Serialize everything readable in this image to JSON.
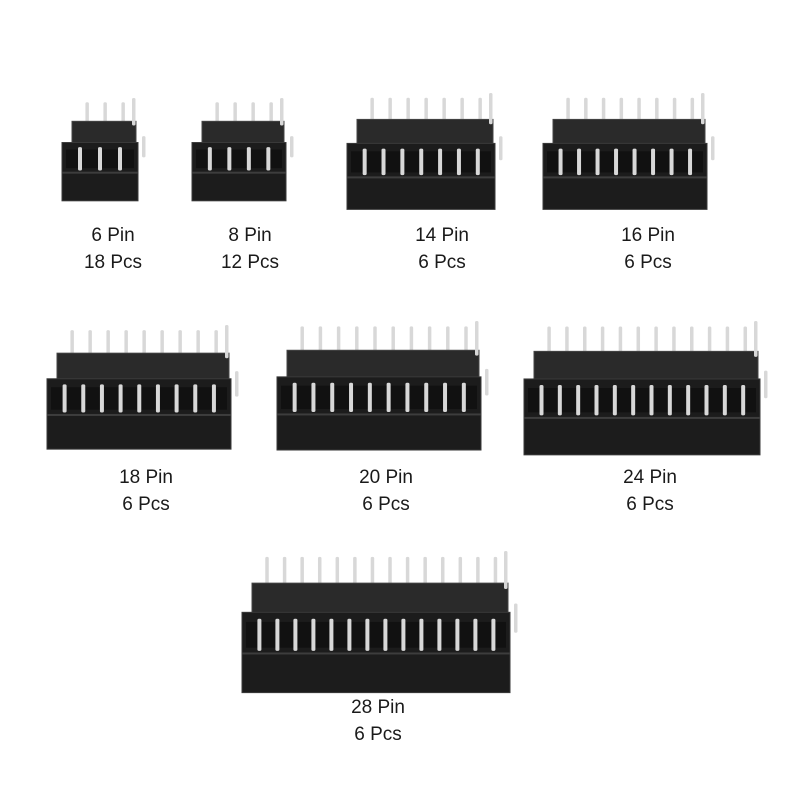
{
  "items": [
    {
      "pins": 6,
      "pin_label": "6 Pin",
      "qty_label": "18 Pcs"
    },
    {
      "pins": 8,
      "pin_label": "8 Pin",
      "qty_label": "12 Pcs"
    },
    {
      "pins": 14,
      "pin_label": "14 Pin",
      "qty_label": "6 Pcs"
    },
    {
      "pins": 16,
      "pin_label": "16 Pin",
      "qty_label": "6 Pcs"
    },
    {
      "pins": 18,
      "pin_label": "18 Pin",
      "qty_label": "6 Pcs"
    },
    {
      "pins": 20,
      "pin_label": "20 Pin",
      "qty_label": "6 Pcs"
    },
    {
      "pins": 24,
      "pin_label": "24 Pin",
      "qty_label": "6 Pcs"
    },
    {
      "pins": 28,
      "pin_label": "28 Pin",
      "qty_label": "6 Pcs"
    }
  ],
  "colors": {
    "socket_body": "#1c1c1c",
    "pin": "#d8d8d8",
    "text": "#1a1a1a"
  }
}
